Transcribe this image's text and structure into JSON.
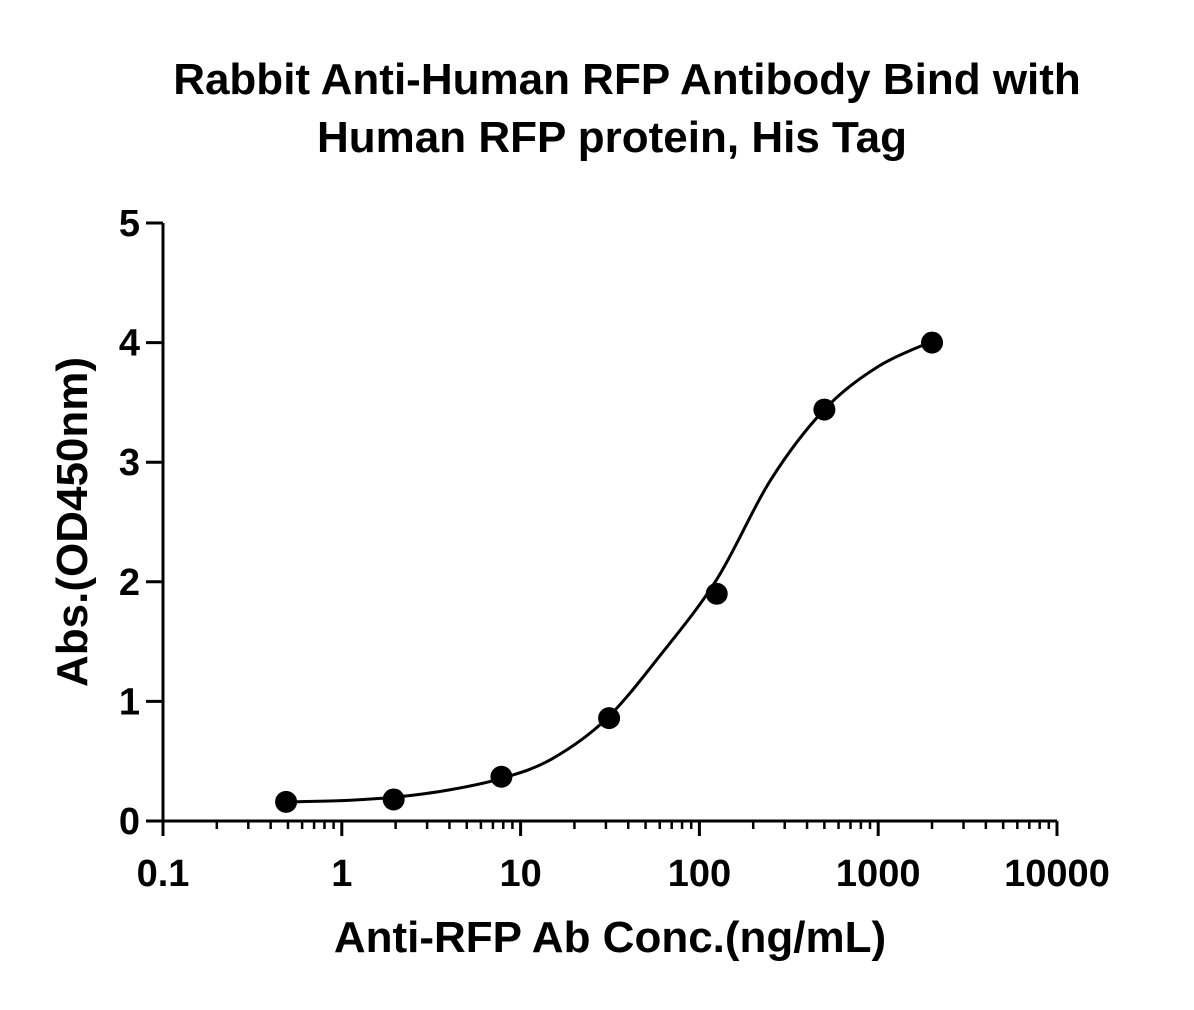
{
  "chart_data": {
    "type": "scatter",
    "title_lines": [
      "Rabbit Anti-Human RFP Antibody Bind with",
      "Human RFP protein, His Tag"
    ],
    "xlabel": "Anti-RFP Ab Conc.(ng/mL)",
    "ylabel": "Abs.(OD450nm)",
    "x_scale": "log",
    "xlim": [
      0.1,
      10000
    ],
    "ylim": [
      0,
      5
    ],
    "x_ticks": [
      0.1,
      1,
      10,
      100,
      1000,
      10000
    ],
    "x_tick_labels": [
      "0.1",
      "1",
      "10",
      "100",
      "1000",
      "10000"
    ],
    "y_ticks": [
      0,
      1,
      2,
      3,
      4,
      5
    ],
    "y_tick_labels": [
      "0",
      "1",
      "2",
      "3",
      "4",
      "5"
    ],
    "grid": false,
    "legend": "none",
    "series": [
      {
        "x": [
          0.488,
          1.95,
          7.81,
          31.25,
          125,
          500,
          2000
        ],
        "y": [
          0.16,
          0.18,
          0.37,
          0.86,
          1.9,
          3.44,
          4.0
        ],
        "marker": "filled-circle",
        "fit": "sigmoidal-4pl",
        "color": "#000000"
      }
    ],
    "fit_curve": {
      "x": [
        0.5,
        1,
        2,
        4,
        8,
        15,
        30,
        60,
        125,
        250,
        500,
        1000,
        2000
      ],
      "y": [
        0.16,
        0.17,
        0.2,
        0.26,
        0.36,
        0.52,
        0.85,
        1.38,
        2.02,
        2.85,
        3.44,
        3.8,
        4.01
      ]
    }
  }
}
